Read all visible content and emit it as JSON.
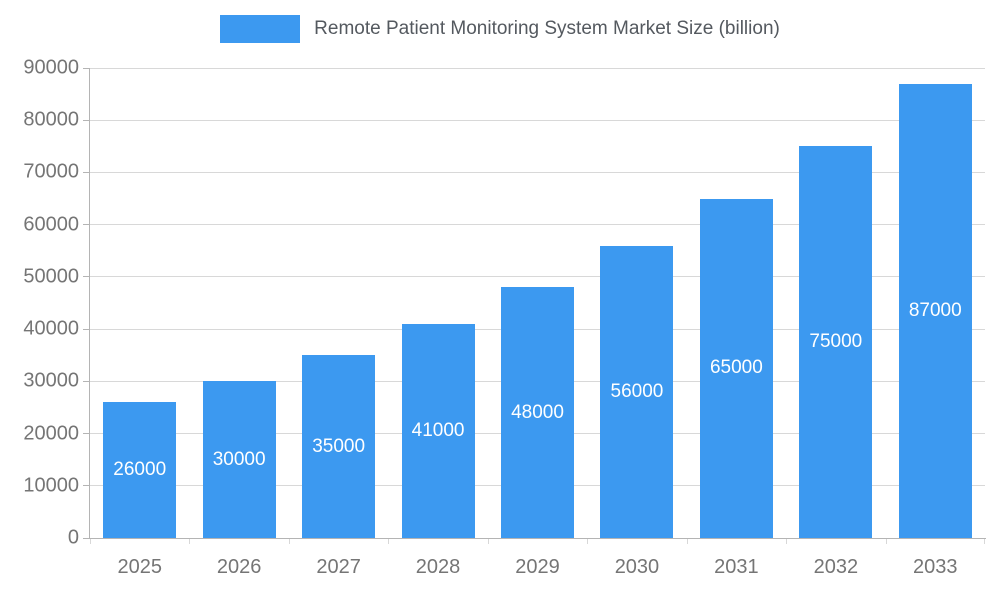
{
  "colors": {
    "bar": "#3C99F0",
    "grid": "#D8D8D8",
    "axis": "#B4B4B4",
    "tick_text": "#757575",
    "title_text": "#54595F",
    "bar_label": "#FFFFFF"
  },
  "legend": {
    "label": "Remote Patient Monitoring System Market Size (billion)"
  },
  "chart_data": {
    "type": "bar",
    "title": "Remote Patient Monitoring System Market Size (billion)",
    "categories": [
      "2025",
      "2026",
      "2027",
      "2028",
      "2029",
      "2030",
      "2031",
      "2032",
      "2033"
    ],
    "values": [
      26000,
      30000,
      35000,
      41000,
      48000,
      56000,
      65000,
      75000,
      87000
    ],
    "xlabel": "",
    "ylabel": "",
    "ylim": [
      0,
      90000
    ],
    "ytick_step": 10000,
    "ytick_labels": [
      "0",
      "10000",
      "20000",
      "30000",
      "40000",
      "50000",
      "60000",
      "70000",
      "80000",
      "90000"
    ],
    "grid": true,
    "bar_labels": true,
    "legend_position": "top"
  }
}
